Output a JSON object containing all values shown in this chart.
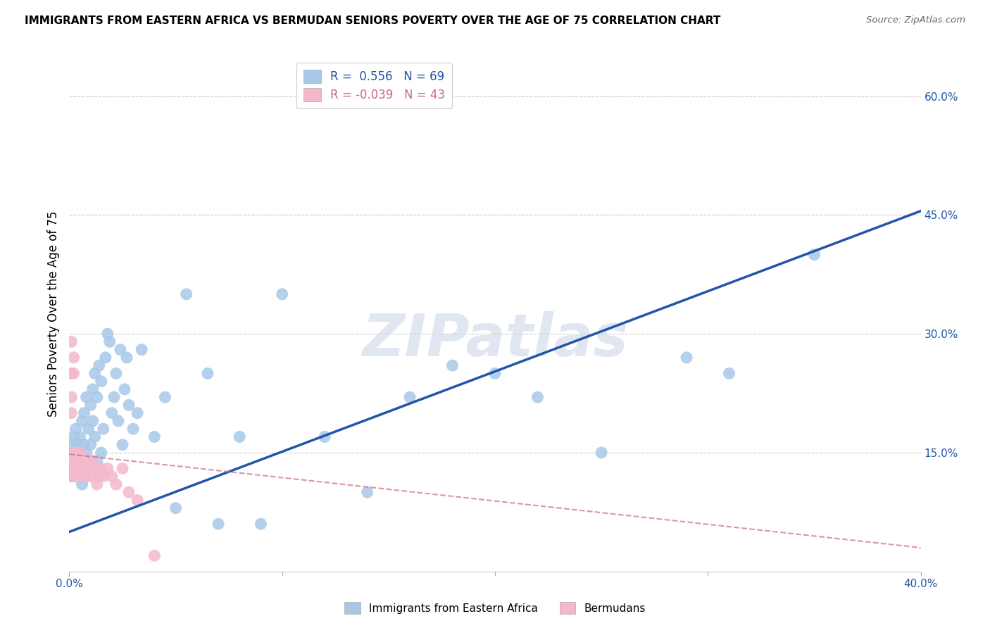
{
  "title": "IMMIGRANTS FROM EASTERN AFRICA VS BERMUDAN SENIORS POVERTY OVER THE AGE OF 75 CORRELATION CHART",
  "source": "Source: ZipAtlas.com",
  "ylabel": "Seniors Poverty Over the Age of 75",
  "xlabel_blue": "Immigrants from Eastern Africa",
  "xlabel_pink": "Bermudans",
  "blue_R": 0.556,
  "blue_N": 69,
  "pink_R": -0.039,
  "pink_N": 43,
  "xlim": [
    0.0,
    0.4
  ],
  "ylim": [
    0.0,
    0.65
  ],
  "xticks": [
    0.0,
    0.1,
    0.2,
    0.3,
    0.4
  ],
  "yticks": [
    0.0,
    0.15,
    0.3,
    0.45,
    0.6
  ],
  "blue_color": "#a8c8e8",
  "blue_line_color": "#2255aa",
  "pink_color": "#f4b8cc",
  "pink_line_color": "#cc6688",
  "watermark_text": "ZIPatlas",
  "blue_line_x0": 0.0,
  "blue_line_y0": 0.05,
  "blue_line_x1": 0.4,
  "blue_line_y1": 0.455,
  "pink_line_x0": 0.0,
  "pink_line_y0": 0.148,
  "pink_line_x1": 0.4,
  "pink_line_y1": 0.03,
  "blue_scatter_x": [
    0.001,
    0.001,
    0.001,
    0.002,
    0.002,
    0.002,
    0.003,
    0.003,
    0.003,
    0.004,
    0.004,
    0.005,
    0.005,
    0.005,
    0.006,
    0.006,
    0.006,
    0.007,
    0.007,
    0.008,
    0.008,
    0.009,
    0.009,
    0.01,
    0.01,
    0.011,
    0.011,
    0.012,
    0.012,
    0.013,
    0.013,
    0.014,
    0.015,
    0.015,
    0.016,
    0.017,
    0.018,
    0.019,
    0.02,
    0.021,
    0.022,
    0.023,
    0.024,
    0.025,
    0.026,
    0.027,
    0.028,
    0.03,
    0.032,
    0.034,
    0.04,
    0.045,
    0.05,
    0.055,
    0.065,
    0.07,
    0.08,
    0.09,
    0.1,
    0.12,
    0.14,
    0.16,
    0.18,
    0.2,
    0.22,
    0.25,
    0.29,
    0.31,
    0.35
  ],
  "blue_scatter_y": [
    0.14,
    0.12,
    0.16,
    0.13,
    0.15,
    0.17,
    0.12,
    0.14,
    0.18,
    0.16,
    0.13,
    0.15,
    0.12,
    0.17,
    0.14,
    0.19,
    0.11,
    0.16,
    0.2,
    0.15,
    0.22,
    0.14,
    0.18,
    0.16,
    0.21,
    0.19,
    0.23,
    0.17,
    0.25,
    0.22,
    0.14,
    0.26,
    0.15,
    0.24,
    0.18,
    0.27,
    0.3,
    0.29,
    0.2,
    0.22,
    0.25,
    0.19,
    0.28,
    0.16,
    0.23,
    0.27,
    0.21,
    0.18,
    0.2,
    0.28,
    0.17,
    0.22,
    0.08,
    0.35,
    0.25,
    0.06,
    0.17,
    0.06,
    0.35,
    0.17,
    0.1,
    0.22,
    0.26,
    0.25,
    0.22,
    0.15,
    0.27,
    0.25,
    0.4
  ],
  "pink_scatter_x": [
    0.0,
    0.0,
    0.001,
    0.001,
    0.001,
    0.001,
    0.001,
    0.002,
    0.002,
    0.002,
    0.002,
    0.003,
    0.003,
    0.003,
    0.003,
    0.004,
    0.004,
    0.004,
    0.005,
    0.005,
    0.005,
    0.006,
    0.006,
    0.007,
    0.007,
    0.008,
    0.008,
    0.009,
    0.01,
    0.01,
    0.011,
    0.012,
    0.013,
    0.014,
    0.015,
    0.016,
    0.018,
    0.02,
    0.022,
    0.025,
    0.028,
    0.032,
    0.04
  ],
  "pink_scatter_y": [
    0.14,
    0.12,
    0.29,
    0.22,
    0.2,
    0.25,
    0.14,
    0.27,
    0.25,
    0.15,
    0.13,
    0.14,
    0.13,
    0.15,
    0.12,
    0.14,
    0.13,
    0.12,
    0.14,
    0.15,
    0.12,
    0.14,
    0.13,
    0.14,
    0.12,
    0.13,
    0.12,
    0.14,
    0.13,
    0.12,
    0.14,
    0.13,
    0.11,
    0.12,
    0.13,
    0.12,
    0.13,
    0.12,
    0.11,
    0.13,
    0.1,
    0.09,
    0.02
  ]
}
